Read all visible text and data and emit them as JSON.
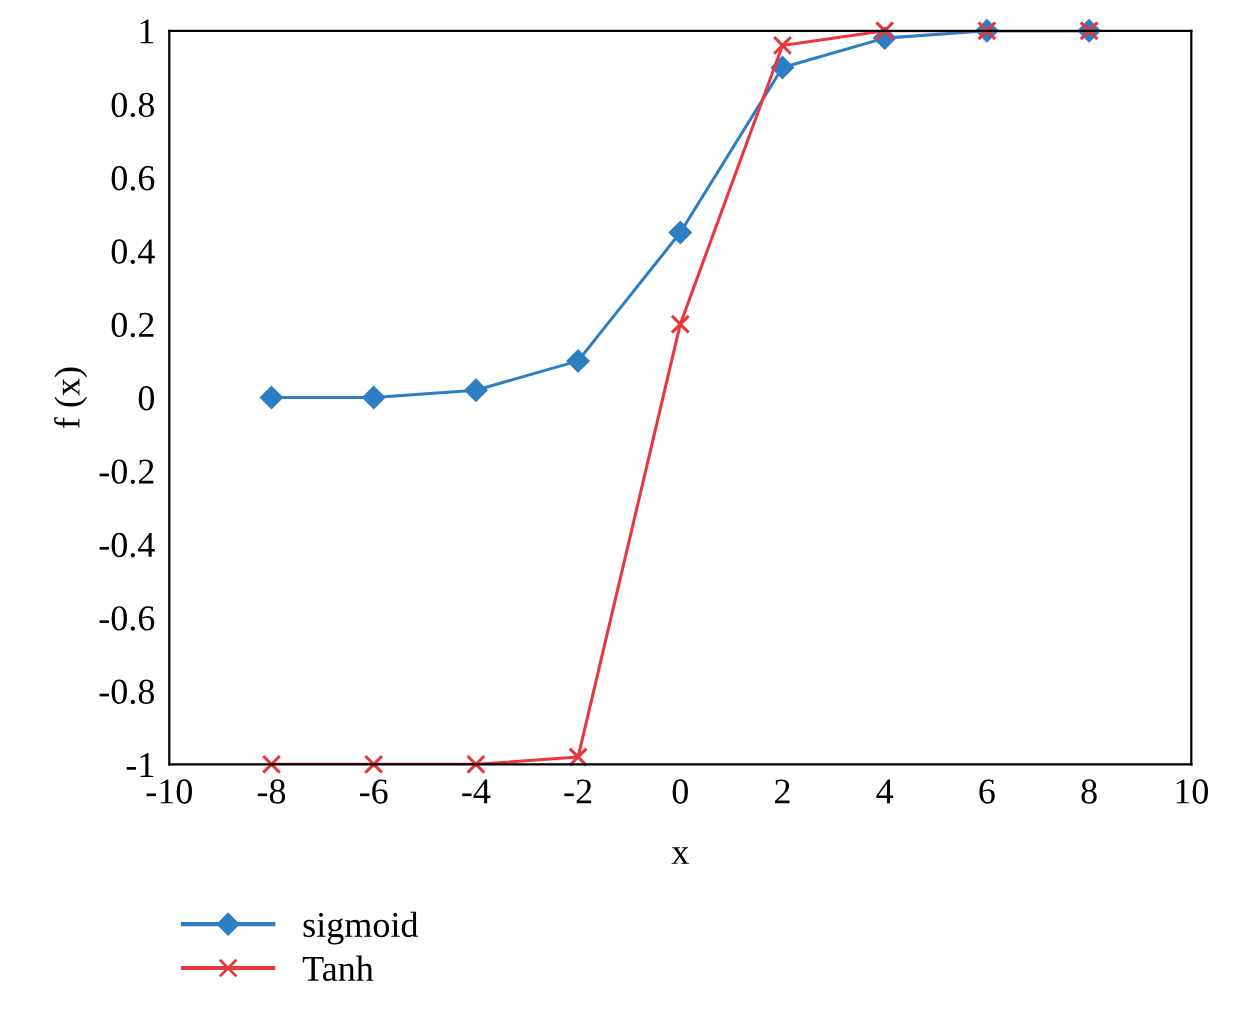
{
  "chart_data": {
    "type": "line",
    "xlabel": "x",
    "ylabel": "f (x)",
    "x": [
      -8,
      -6,
      -4,
      -2,
      0,
      2,
      4,
      6,
      8
    ],
    "series": [
      {
        "name": "sigmoid",
        "color": "#2e7ec4",
        "marker": "diamond",
        "values": [
          0.0,
          0.0,
          0.02,
          0.1,
          0.45,
          0.9,
          0.98,
          1.0,
          1.0
        ]
      },
      {
        "name": "Tanh",
        "color": "#e8383d",
        "marker": "cross",
        "values": [
          -1.0,
          -1.0,
          -1.0,
          -0.98,
          0.2,
          0.96,
          1.0,
          1.0,
          1.0
        ]
      }
    ],
    "xlim": [
      -10,
      10
    ],
    "xticks": [
      -10,
      -8,
      -6,
      -4,
      -2,
      0,
      2,
      4,
      6,
      8,
      10
    ],
    "ylim": [
      -1,
      1
    ],
    "yticks": [
      -1,
      -0.8,
      -0.6,
      -0.4,
      -0.2,
      0,
      0.2,
      0.4,
      0.6,
      0.8,
      1
    ],
    "grid": false,
    "legend": "bottom left",
    "line_style": "solid"
  }
}
